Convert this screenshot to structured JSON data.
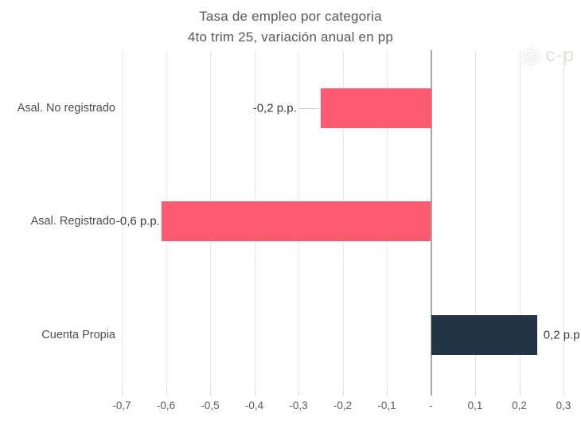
{
  "logo": {
    "text": "c-p",
    "icon": "sunburst-icon"
  },
  "colors": {
    "negative_bar": "#fc5a6e",
    "positive_bar": "#233447",
    "gridline": "#e8e8e8",
    "tick_mark": "#d8d8d8",
    "zero_line": "#a3a8ac",
    "leader_line": "#cccccc",
    "title_text": "#58585a",
    "category_text": "#4f4f4f",
    "value_text": "#3c3c3c",
    "tick_text": "#5d5d5d",
    "logo": "#e3e1dd"
  },
  "chart_data": {
    "type": "bar",
    "orientation": "horizontal",
    "title": "Tasa de empleo por categoria",
    "subtitle": "4to trim 25, variación anual en pp",
    "unit": "p.p.",
    "categories": [
      "Asal. No registrado",
      "Asal. Registrado",
      "Cuenta Propia"
    ],
    "values": [
      -0.25,
      -0.61,
      0.24
    ],
    "bar_labels": [
      "-0,2 p.p.",
      "-0,6 p.p.",
      "0,2 p.p."
    ],
    "bar_colors": [
      "#fc5a6e",
      "#fc5a6e",
      "#233447"
    ],
    "label_leader": [
      true,
      false,
      false
    ],
    "x_ticks": [
      -0.7,
      -0.6,
      -0.5,
      -0.4,
      -0.3,
      -0.2,
      -0.1,
      0,
      0.1,
      0.2,
      0.3
    ],
    "x_tick_labels": [
      "-0,7",
      "-0,6",
      "-0,5",
      "-0,4",
      "-0,3",
      "-0,2",
      "-0,1",
      "-",
      "0,1",
      "0,2",
      "0,3"
    ],
    "xlim": [
      -0.75,
      0.34
    ],
    "grid": "vertical",
    "legend": "none"
  }
}
